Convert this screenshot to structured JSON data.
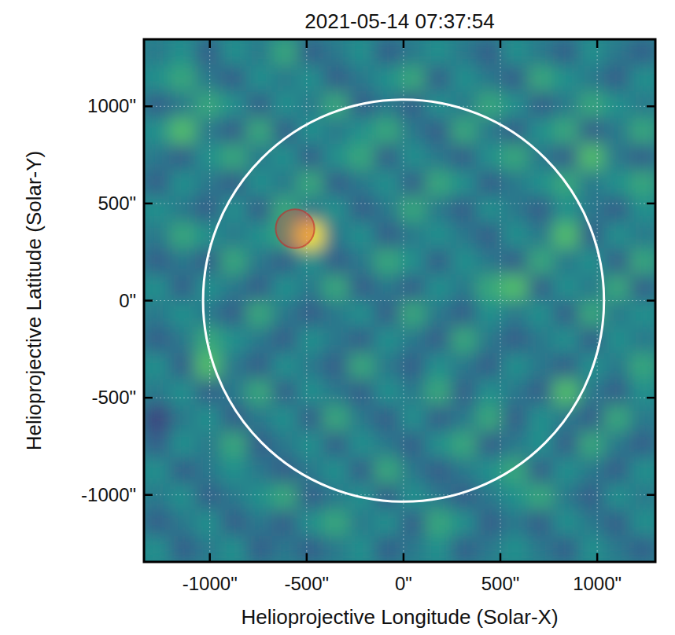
{
  "chart_data": {
    "type": "heatmap",
    "title": "2021-05-14 07:37:54",
    "x_label": "Helioprojective Longitude (Solar-X)",
    "y_label": "Helioprojective Latitude (Solar-Y)",
    "xlim": [
      -1340,
      1300
    ],
    "ylim": [
      -1345,
      1345
    ],
    "xticks": [
      {
        "value": -1000,
        "label": "-1000\""
      },
      {
        "value": -500,
        "label": "-500\""
      },
      {
        "value": 0,
        "label": "0\""
      },
      {
        "value": 500,
        "label": "500\""
      },
      {
        "value": 1000,
        "label": "1000\""
      }
    ],
    "yticks": [
      {
        "value": -1000,
        "label": "-1000\""
      },
      {
        "value": -500,
        "label": "-500\""
      },
      {
        "value": 0,
        "label": "0\""
      },
      {
        "value": 500,
        "label": "500\""
      },
      {
        "value": 1000,
        "label": "1000\""
      }
    ],
    "grid": true,
    "color_range": [
      0,
      1
    ],
    "limb_radius": 1035,
    "source": {
      "x": -560,
      "y": 370,
      "radius": 100
    },
    "cells": [
      [
        0.4,
        0.5,
        0.3,
        0.5,
        0.4,
        0.6,
        0.3,
        0.4,
        0.5,
        0.3,
        0.4,
        0.5,
        0.4,
        0.3,
        0.5,
        0.4,
        0.3,
        0.5,
        0.4,
        0.3
      ],
      [
        0.5,
        0.6,
        0.4,
        0.3,
        0.5,
        0.4,
        0.5,
        0.3,
        0.4,
        0.5,
        0.6,
        0.3,
        0.5,
        0.4,
        0.3,
        0.6,
        0.5,
        0.4,
        0.3,
        0.5
      ],
      [
        0.3,
        0.4,
        0.6,
        0.5,
        0.3,
        0.5,
        0.4,
        0.6,
        0.3,
        0.4,
        0.3,
        0.5,
        0.4,
        0.6,
        0.5,
        0.3,
        0.4,
        0.6,
        0.5,
        0.4
      ],
      [
        0.5,
        0.7,
        0.4,
        0.3,
        0.6,
        0.3,
        0.5,
        0.4,
        0.5,
        0.6,
        0.4,
        0.3,
        0.6,
        0.4,
        0.3,
        0.5,
        0.6,
        0.3,
        0.4,
        0.6
      ],
      [
        0.4,
        0.3,
        0.5,
        0.6,
        0.4,
        0.5,
        0.3,
        0.5,
        0.6,
        0.3,
        0.5,
        0.4,
        0.3,
        0.5,
        0.6,
        0.4,
        0.3,
        0.7,
        0.4,
        0.3
      ],
      [
        0.3,
        0.5,
        0.4,
        0.3,
        0.5,
        0.4,
        0.6,
        0.3,
        0.4,
        0.5,
        0.3,
        0.6,
        0.5,
        0.3,
        0.4,
        0.5,
        0.6,
        0.4,
        0.5,
        0.6
      ],
      [
        0.5,
        0.4,
        0.3,
        0.5,
        0.3,
        0.6,
        0.4,
        0.5,
        0.3,
        0.4,
        0.6,
        0.4,
        0.3,
        0.5,
        0.4,
        0.3,
        0.5,
        0.4,
        0.3,
        0.5
      ],
      [
        0.4,
        0.6,
        0.5,
        0.4,
        0.5,
        0.6,
        1.0,
        0.4,
        0.5,
        0.3,
        0.4,
        0.5,
        0.4,
        0.3,
        0.5,
        0.4,
        0.7,
        0.3,
        0.5,
        0.4
      ],
      [
        0.3,
        0.4,
        0.3,
        0.6,
        0.4,
        0.3,
        0.5,
        0.3,
        0.4,
        0.6,
        0.5,
        0.3,
        0.5,
        0.4,
        0.3,
        0.6,
        0.4,
        0.5,
        0.3,
        0.6
      ],
      [
        0.5,
        0.3,
        0.5,
        0.4,
        0.3,
        0.5,
        0.4,
        0.6,
        0.3,
        0.4,
        0.3,
        0.5,
        0.4,
        0.6,
        0.7,
        0.3,
        0.5,
        0.4,
        0.6,
        0.3
      ],
      [
        0.4,
        0.5,
        0.4,
        0.3,
        0.6,
        0.4,
        0.3,
        0.4,
        0.5,
        0.3,
        0.6,
        0.4,
        0.3,
        0.5,
        0.4,
        0.5,
        0.3,
        0.6,
        0.4,
        0.5
      ],
      [
        0.3,
        0.4,
        0.6,
        0.5,
        0.4,
        0.3,
        0.5,
        0.4,
        0.3,
        0.5,
        0.4,
        0.3,
        0.6,
        0.4,
        0.3,
        0.4,
        0.5,
        0.3,
        0.5,
        0.4
      ],
      [
        0.5,
        0.3,
        0.7,
        0.4,
        0.3,
        0.5,
        0.4,
        0.3,
        0.6,
        0.4,
        0.3,
        0.5,
        0.4,
        0.3,
        0.5,
        0.4,
        0.3,
        0.5,
        0.4,
        0.6
      ],
      [
        0.4,
        0.5,
        0.3,
        0.4,
        0.6,
        0.3,
        0.5,
        0.4,
        0.3,
        0.5,
        0.4,
        0.6,
        0.3,
        0.5,
        0.4,
        0.3,
        0.7,
        0.4,
        0.3,
        0.5
      ],
      [
        0.2,
        0.4,
        0.5,
        0.3,
        0.4,
        0.5,
        0.3,
        0.6,
        0.4,
        0.3,
        0.5,
        0.3,
        0.4,
        0.6,
        0.3,
        0.5,
        0.4,
        0.3,
        0.6,
        0.4
      ],
      [
        0.3,
        0.5,
        0.4,
        0.6,
        0.3,
        0.4,
        0.5,
        0.3,
        0.5,
        0.4,
        0.3,
        0.5,
        0.6,
        0.3,
        0.4,
        0.5,
        0.3,
        0.6,
        0.4,
        0.3
      ],
      [
        0.5,
        0.3,
        0.4,
        0.5,
        0.4,
        0.3,
        0.4,
        0.5,
        0.3,
        0.6,
        0.4,
        0.3,
        0.4,
        0.5,
        0.6,
        0.3,
        0.5,
        0.4,
        0.3,
        0.5
      ],
      [
        0.4,
        0.5,
        0.3,
        0.4,
        0.5,
        0.6,
        0.3,
        0.4,
        0.5,
        0.3,
        0.5,
        0.4,
        0.3,
        0.4,
        0.5,
        0.6,
        0.4,
        0.3,
        0.5,
        0.4
      ],
      [
        0.3,
        0.4,
        0.5,
        0.3,
        0.4,
        0.3,
        0.5,
        0.6,
        0.4,
        0.5,
        0.3,
        0.6,
        0.5,
        0.3,
        0.4,
        0.3,
        0.5,
        0.4,
        0.3,
        0.5
      ],
      [
        0.5,
        0.3,
        0.4,
        0.5,
        0.3,
        0.4,
        0.3,
        0.4,
        0.5,
        0.3,
        0.4,
        0.5,
        0.3,
        0.4,
        0.5,
        0.4,
        0.3,
        0.5,
        0.4,
        0.3
      ]
    ]
  }
}
